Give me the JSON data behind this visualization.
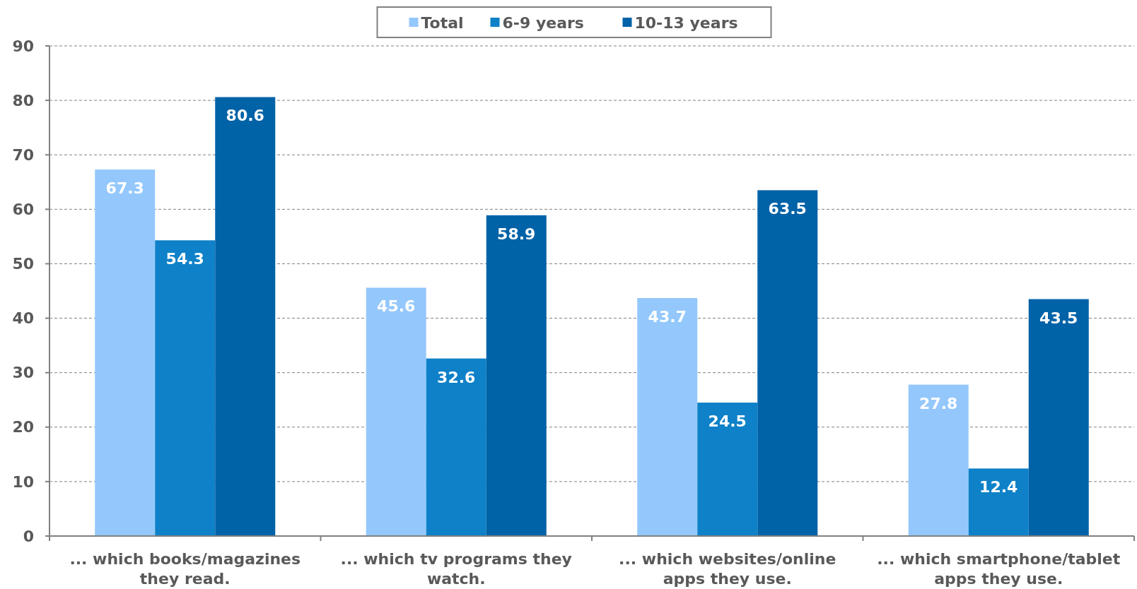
{
  "chart_data": {
    "type": "bar",
    "categories": [
      "... which books/magazines they read.",
      "... which tv programs they watch.",
      "... which websites/online apps they use.",
      "... which smartphone/tablet apps they use."
    ],
    "series": [
      {
        "name": "Total",
        "color": "#94c8fc",
        "values": [
          67.3,
          45.6,
          43.7,
          27.8
        ]
      },
      {
        "name": "6-9 years",
        "color": "#0e81c8",
        "values": [
          54.3,
          32.6,
          24.5,
          12.4
        ]
      },
      {
        "name": "10-13 years",
        "color": "#0062a7",
        "values": [
          80.6,
          58.9,
          63.5,
          43.5
        ]
      }
    ],
    "ylim": [
      0,
      90
    ],
    "yticks": [
      0,
      10,
      20,
      30,
      40,
      50,
      60,
      70,
      80,
      90
    ],
    "grid": "y",
    "legend": "top",
    "data_labels": true
  }
}
